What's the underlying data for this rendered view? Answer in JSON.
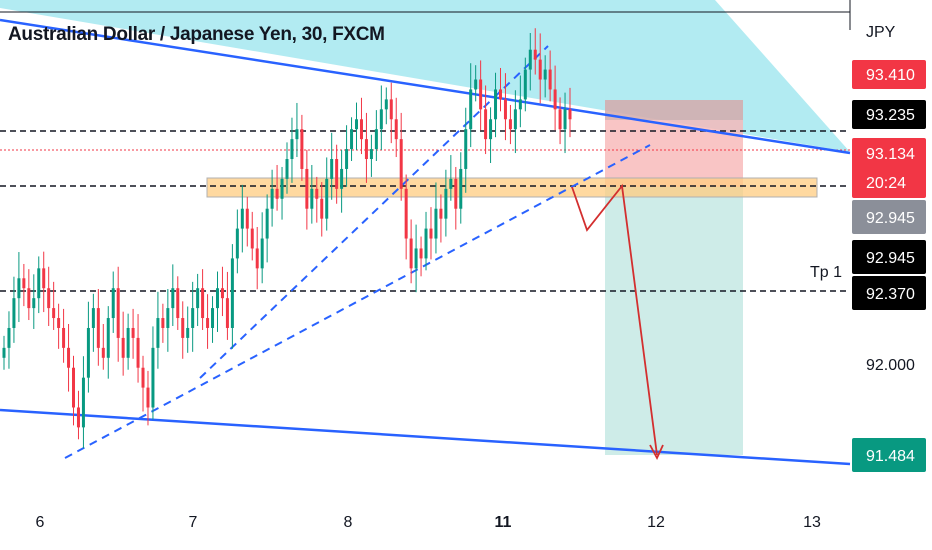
{
  "title": "Australian Dollar / Japanese Yen, 30, FXCM",
  "currency_label": "JPY",
  "tp_label": "Tp 1",
  "countdown": "20:24",
  "x_ticks": [
    {
      "label": "6",
      "bold": false
    },
    {
      "label": "7",
      "bold": false
    },
    {
      "label": "8",
      "bold": false
    },
    {
      "label": "11",
      "bold": true
    },
    {
      "label": "12",
      "bold": false
    },
    {
      "label": "13",
      "bold": false
    }
  ],
  "y_ticks": [
    "92.000"
  ],
  "price_badges": [
    {
      "label": "93.410",
      "bg": "#f23645",
      "fg": "#ffffff"
    },
    {
      "label": "93.235",
      "bg": "#000000",
      "fg": "#ffffff"
    },
    {
      "label": "93.134",
      "bg": "#f23645",
      "fg": "#ffffff"
    },
    {
      "label": "92.945",
      "bg": "#8b8f99",
      "fg": "#ffffff"
    },
    {
      "label": "92.945",
      "bg": "#000000",
      "fg": "#ffffff"
    },
    {
      "label": "92.370",
      "bg": "#000000",
      "fg": "#ffffff"
    },
    {
      "label": "91.484",
      "bg": "#089981",
      "fg": "#ffffff"
    }
  ],
  "colors": {
    "up": "#089981",
    "down": "#f23645",
    "trendline": "#2962ff",
    "zone": "#ffcc80",
    "cloud": "#b2ebf2",
    "stop": "#f7b6b6",
    "target": "#a6dcd6",
    "projection": "#d32f2f"
  },
  "chart_data": {
    "type": "candlestick",
    "symbol": "AUDJPY",
    "timeframe": "30",
    "x_range": [
      "6",
      "13"
    ],
    "y_range": [
      91.3,
      93.75
    ],
    "horizontal_levels": [
      93.235,
      92.945,
      92.37
    ],
    "current_price": 93.134,
    "trade": {
      "direction": "short",
      "entry": 92.945,
      "stop": 93.41,
      "target": 91.484
    },
    "candles_close": [
      92.0,
      92.1,
      92.25,
      92.35,
      92.3,
      92.2,
      92.25,
      92.4,
      92.3,
      92.2,
      92.15,
      92.1,
      92.0,
      91.9,
      91.7,
      91.6,
      91.85,
      92.1,
      92.2,
      92.0,
      91.95,
      92.15,
      92.3,
      92.05,
      91.95,
      92.1,
      92.05,
      91.9,
      91.8,
      91.7,
      92.0,
      92.15,
      92.1,
      92.2,
      92.3,
      92.15,
      92.05,
      92.1,
      92.2,
      92.3,
      92.15,
      92.1,
      92.2,
      92.3,
      92.25,
      92.1,
      92.45,
      92.6,
      92.7,
      92.6,
      92.5,
      92.4,
      92.55,
      92.7,
      92.8,
      92.75,
      92.85,
      92.95,
      93.05,
      93.1,
      92.9,
      92.7,
      92.8,
      92.75,
      92.65,
      92.85,
      92.95,
      92.8,
      92.9,
      93.0,
      93.1,
      93.15,
      93.05,
      92.95,
      93.0,
      93.1,
      93.2,
      93.25,
      93.15,
      93.05,
      92.8,
      92.55,
      92.4,
      92.5,
      92.45,
      92.6,
      92.55,
      92.7,
      92.65,
      92.8,
      92.85,
      92.7,
      92.9,
      93.1,
      93.3,
      93.35,
      93.2,
      93.05,
      93.15,
      93.3,
      93.25,
      93.15,
      93.1,
      93.2,
      93.25,
      93.4,
      93.5,
      93.45,
      93.35,
      93.4,
      93.3,
      93.2,
      93.1,
      93.2,
      93.15
    ]
  }
}
